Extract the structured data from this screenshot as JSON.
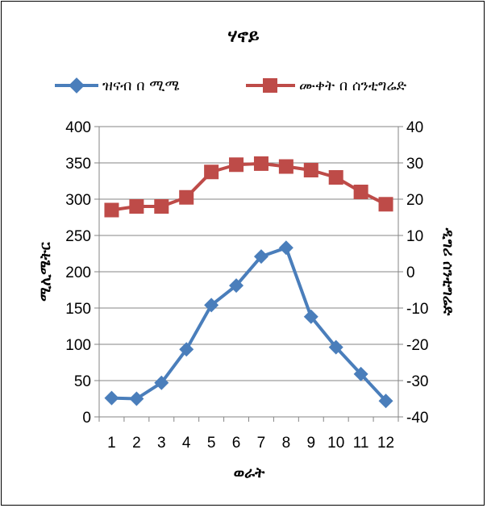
{
  "chart_data": {
    "type": "line",
    "title": "ሃኖይ",
    "xlabel": "ወራት",
    "ylabel_left": "ሚሊሜትር",
    "ylabel_right": "ዲግሪ ሰንቲግሬድ",
    "categories": [
      "1",
      "2",
      "3",
      "4",
      "5",
      "6",
      "7",
      "8",
      "9",
      "10",
      "11",
      "12"
    ],
    "y_left_ticks": [
      "0",
      "50",
      "100",
      "150",
      "200",
      "250",
      "300",
      "350",
      "400"
    ],
    "y_right_ticks": [
      "-40",
      "-30",
      "-20",
      "-10",
      "0",
      "10",
      "20",
      "30",
      "40"
    ],
    "ylim_left": [
      0,
      400
    ],
    "ylim_right": [
      -40,
      40
    ],
    "grid": "horizontal",
    "legend_position": "top",
    "series": [
      {
        "name": "ዝናብ በ ሚሜ",
        "axis": "left",
        "marker": "diamond",
        "color": "#4A7EBB",
        "values": [
          26,
          25,
          47,
          93,
          154,
          181,
          221,
          233,
          138,
          96,
          59,
          22
        ]
      },
      {
        "name": "ሙቀት በ ሰንቲግሬድ",
        "axis": "right",
        "marker": "square",
        "color": "#BE4B48",
        "values": [
          17.0,
          18.0,
          18.0,
          20.5,
          27.5,
          29.5,
          29.8,
          29.0,
          28.0,
          26.0,
          22.0,
          18.6
        ]
      }
    ]
  }
}
